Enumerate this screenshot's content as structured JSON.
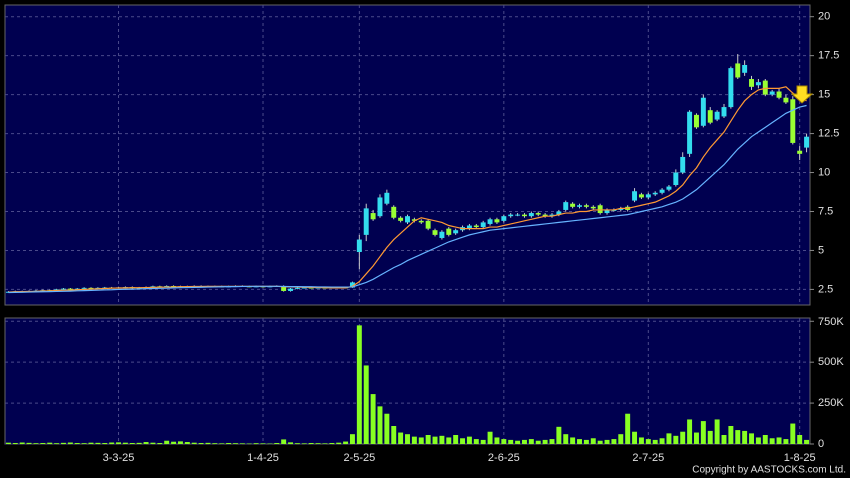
{
  "chart_data": {
    "type": "candlestick",
    "categories": [
      null,
      null,
      null,
      null,
      null,
      null,
      null,
      null,
      null,
      null,
      null,
      null,
      null,
      null,
      null,
      null,
      "3-3-25",
      null,
      null,
      null,
      null,
      null,
      null,
      null,
      null,
      null,
      null,
      null,
      null,
      null,
      null,
      null,
      null,
      null,
      null,
      null,
      null,
      "1-4-25",
      null,
      null,
      null,
      null,
      null,
      null,
      null,
      null,
      null,
      null,
      null,
      null,
      null,
      "2-5-25",
      null,
      null,
      null,
      null,
      null,
      null,
      null,
      null,
      null,
      null,
      null,
      null,
      null,
      null,
      null,
      null,
      null,
      null,
      null,
      null,
      "2-6-25",
      null,
      null,
      null,
      null,
      null,
      null,
      null,
      null,
      null,
      null,
      null,
      null,
      null,
      null,
      null,
      null,
      null,
      null,
      null,
      null,
      "2-7-25",
      null,
      null,
      null,
      null,
      null,
      null,
      null,
      null,
      null,
      null,
      null,
      null,
      null,
      null,
      null,
      null,
      null,
      null,
      null,
      null,
      null,
      "1-8-25",
      null
    ],
    "open": [
      2.33,
      2.35,
      2.38,
      2.36,
      2.4,
      2.42,
      2.45,
      2.43,
      2.5,
      2.55,
      2.52,
      2.55,
      2.6,
      2.58,
      2.6,
      2.62,
      2.6,
      2.63,
      2.65,
      2.6,
      2.62,
      2.65,
      2.7,
      2.68,
      2.72,
      2.7,
      2.68,
      2.7,
      2.72,
      2.7,
      2.68,
      2.7,
      2.68,
      2.7,
      2.72,
      2.7,
      2.68,
      2.7,
      2.68,
      2.7,
      2.72,
      2.4,
      2.55,
      2.6,
      2.62,
      2.6,
      2.62,
      2.6,
      2.62,
      2.64,
      2.62,
      4.9,
      6.0,
      7.4,
      7.2,
      8.0,
      7.8,
      7.1,
      6.8,
      7.0,
      6.9,
      6.9,
      6.3,
      5.8,
      6.4,
      6.1,
      6.3,
      6.4,
      6.6,
      6.5,
      6.7,
      7.0,
      6.9,
      7.2,
      7.3,
      7.3,
      7.2,
      7.4,
      7.3,
      7.2,
      7.3,
      7.6,
      8.0,
      7.8,
      7.9,
      7.8,
      7.9,
      7.4,
      7.6,
      7.6,
      7.8,
      8.2,
      8.6,
      8.4,
      8.6,
      8.7,
      8.9,
      9.2,
      10.0,
      11.2,
      13.7,
      13.0,
      14.0,
      13.4,
      13.6,
      14.2,
      17.0,
      16.4,
      16.0,
      15.6,
      15.9,
      15.0,
      15.2,
      14.8,
      14.7,
      11.4,
      11.6
    ],
    "high": [
      2.39,
      2.42,
      2.42,
      2.44,
      2.46,
      2.49,
      2.49,
      2.54,
      2.59,
      2.59,
      2.59,
      2.64,
      2.64,
      2.64,
      2.66,
      2.66,
      2.67,
      2.69,
      2.69,
      2.66,
      2.69,
      2.74,
      2.74,
      2.76,
      2.76,
      2.74,
      2.74,
      2.76,
      2.76,
      2.74,
      2.74,
      2.74,
      2.74,
      2.76,
      2.76,
      2.74,
      2.74,
      2.74,
      2.74,
      2.76,
      2.76,
      2.59,
      2.64,
      2.66,
      2.66,
      2.66,
      2.66,
      2.66,
      2.68,
      2.68,
      3.0,
      6.0,
      8.0,
      7.6,
      8.6,
      8.9,
      7.9,
      7.2,
      7.3,
      7.1,
      7.0,
      7.0,
      6.4,
      6.3,
      6.5,
      6.4,
      6.6,
      6.7,
      6.7,
      6.9,
      7.1,
      7.1,
      7.3,
      7.4,
      7.4,
      7.4,
      7.5,
      7.5,
      7.4,
      7.4,
      7.6,
      8.2,
      8.1,
      8.0,
      8.0,
      7.9,
      8.0,
      7.7,
      7.7,
      7.8,
      7.9,
      9.0,
      8.7,
      8.7,
      8.8,
      9.0,
      9.2,
      10.2,
      11.3,
      14.0,
      13.8,
      15.0,
      14.2,
      14.0,
      14.4,
      16.8,
      17.6,
      17.2,
      16.2,
      16.0,
      16.0,
      15.3,
      15.4,
      15.0,
      14.9,
      11.7,
      12.5
    ],
    "low": [
      2.29,
      2.31,
      2.32,
      2.32,
      2.36,
      2.38,
      2.39,
      2.39,
      2.46,
      2.48,
      2.48,
      2.51,
      2.54,
      2.54,
      2.56,
      2.56,
      2.56,
      2.59,
      2.56,
      2.56,
      2.58,
      2.61,
      2.64,
      2.64,
      2.66,
      2.64,
      2.64,
      2.66,
      2.66,
      2.64,
      2.64,
      2.64,
      2.64,
      2.66,
      2.66,
      2.64,
      2.64,
      2.64,
      2.64,
      2.66,
      2.36,
      2.36,
      2.51,
      2.56,
      2.56,
      2.56,
      2.56,
      2.56,
      2.58,
      2.56,
      2.6,
      3.8,
      5.6,
      6.9,
      7.1,
      7.9,
      7.0,
      6.8,
      6.7,
      6.8,
      6.7,
      6.3,
      5.9,
      5.7,
      5.9,
      6.0,
      6.2,
      6.3,
      6.4,
      6.4,
      6.6,
      6.7,
      6.8,
      7.1,
      7.2,
      7.1,
      7.1,
      7.2,
      7.1,
      7.1,
      7.2,
      7.5,
      7.7,
      7.7,
      7.7,
      7.6,
      7.3,
      7.3,
      7.5,
      7.5,
      7.5,
      8.1,
      8.3,
      8.3,
      8.5,
      8.6,
      8.8,
      9.1,
      9.9,
      11.0,
      12.8,
      12.9,
      13.1,
      13.3,
      13.5,
      14.1,
      16.0,
      16.2,
      15.3,
      15.4,
      14.9,
      14.9,
      14.7,
      14.4,
      11.8,
      10.8,
      11.3
    ],
    "close": [
      2.35,
      2.38,
      2.36,
      2.4,
      2.42,
      2.45,
      2.43,
      2.5,
      2.55,
      2.52,
      2.55,
      2.6,
      2.58,
      2.6,
      2.62,
      2.6,
      2.63,
      2.65,
      2.6,
      2.62,
      2.65,
      2.7,
      2.68,
      2.72,
      2.7,
      2.68,
      2.7,
      2.72,
      2.7,
      2.68,
      2.7,
      2.68,
      2.7,
      2.72,
      2.7,
      2.68,
      2.7,
      2.68,
      2.7,
      2.72,
      2.4,
      2.55,
      2.6,
      2.62,
      2.6,
      2.62,
      2.6,
      2.62,
      2.64,
      2.6,
      2.95,
      5.7,
      7.7,
      7.0,
      8.4,
      8.7,
      7.1,
      6.9,
      7.2,
      6.9,
      6.8,
      6.4,
      6.0,
      6.2,
      6.0,
      6.3,
      6.5,
      6.6,
      6.5,
      6.8,
      7.0,
      6.8,
      7.2,
      7.3,
      7.3,
      7.2,
      7.4,
      7.3,
      7.2,
      7.3,
      7.5,
      8.1,
      7.8,
      7.9,
      7.8,
      7.7,
      7.4,
      7.6,
      7.6,
      7.7,
      7.6,
      8.8,
      8.4,
      8.6,
      8.7,
      8.9,
      9.1,
      10.0,
      11.0,
      13.9,
      12.9,
      14.8,
      13.2,
      13.9,
      14.2,
      16.7,
      16.1,
      16.9,
      15.5,
      15.8,
      15.0,
      15.2,
      14.8,
      14.5,
      11.9,
      11.2,
      12.3
    ],
    "volume": [
      8000,
      6000,
      9000,
      7000,
      5000,
      6000,
      8000,
      5000,
      7000,
      9000,
      6000,
      5000,
      8000,
      7000,
      6000,
      9000,
      10000,
      8000,
      6000,
      7000,
      12000,
      8000,
      6000,
      20000,
      14000,
      16000,
      12000,
      8000,
      6000,
      7000,
      5000,
      4000,
      6000,
      5000,
      4000,
      3000,
      5000,
      4000,
      3000,
      6000,
      28000,
      10000,
      5000,
      4000,
      6000,
      5000,
      4000,
      6000,
      8000,
      15000,
      60000,
      725000,
      480000,
      305000,
      230000,
      185000,
      110000,
      70000,
      60000,
      45000,
      40000,
      55000,
      45000,
      50000,
      40000,
      55000,
      35000,
      45000,
      30000,
      25000,
      75000,
      40000,
      30000,
      25000,
      20000,
      25000,
      30000,
      20000,
      25000,
      30000,
      105000,
      60000,
      40000,
      30000,
      25000,
      35000,
      20000,
      25000,
      30000,
      60000,
      185000,
      75000,
      40000,
      30000,
      25000,
      35000,
      65000,
      50000,
      75000,
      150000,
      70000,
      140000,
      80000,
      150000,
      55000,
      110000,
      85000,
      80000,
      65000,
      40000,
      55000,
      35000,
      40000,
      30000,
      125000,
      55000,
      25000
    ],
    "moving_averages": [
      {
        "color": "#ff9933",
        "values": [
          2.33,
          2.35,
          2.36,
          2.37,
          2.38,
          2.4,
          2.41,
          2.43,
          2.45,
          2.46,
          2.48,
          2.5,
          2.52,
          2.54,
          2.56,
          2.58,
          2.59,
          2.6,
          2.61,
          2.61,
          2.62,
          2.63,
          2.64,
          2.65,
          2.66,
          2.67,
          2.68,
          2.69,
          2.69,
          2.7,
          2.7,
          2.7,
          2.7,
          2.7,
          2.7,
          2.7,
          2.7,
          2.7,
          2.7,
          2.7,
          2.67,
          2.66,
          2.65,
          2.64,
          2.63,
          2.62,
          2.61,
          2.6,
          2.6,
          2.6,
          2.7,
          3.0,
          3.5,
          4.0,
          4.6,
          5.2,
          5.7,
          6.1,
          6.5,
          6.9,
          7.1,
          7.0,
          6.9,
          6.8,
          6.6,
          6.5,
          6.4,
          6.4,
          6.4,
          6.4,
          6.5,
          6.5,
          6.6,
          6.7,
          6.8,
          6.9,
          7.0,
          7.1,
          7.2,
          7.2,
          7.3,
          7.4,
          7.4,
          7.5,
          7.5,
          7.6,
          7.6,
          7.6,
          7.6,
          7.7,
          7.7,
          7.8,
          7.9,
          8.0,
          8.1,
          8.3,
          8.5,
          8.8,
          9.2,
          9.8,
          10.3,
          11.0,
          11.6,
          12.1,
          12.6,
          13.3,
          14.0,
          14.6,
          15.0,
          15.3,
          15.4,
          15.4,
          15.4,
          15.5,
          15.1,
          14.8,
          14.6
        ]
      },
      {
        "color": "#66b3ff",
        "values": [
          2.3,
          2.31,
          2.32,
          2.33,
          2.34,
          2.35,
          2.36,
          2.37,
          2.38,
          2.39,
          2.41,
          2.42,
          2.44,
          2.45,
          2.47,
          2.48,
          2.5,
          2.51,
          2.52,
          2.53,
          2.55,
          2.56,
          2.57,
          2.58,
          2.6,
          2.61,
          2.62,
          2.63,
          2.64,
          2.65,
          2.66,
          2.67,
          2.68,
          2.68,
          2.69,
          2.69,
          2.7,
          2.7,
          2.7,
          2.7,
          2.69,
          2.68,
          2.68,
          2.67,
          2.67,
          2.66,
          2.66,
          2.65,
          2.65,
          2.65,
          2.66,
          2.8,
          2.95,
          3.15,
          3.4,
          3.65,
          3.9,
          4.1,
          4.35,
          4.55,
          4.75,
          4.95,
          5.15,
          5.35,
          5.55,
          5.7,
          5.85,
          6.0,
          6.1,
          6.2,
          6.3,
          6.35,
          6.4,
          6.45,
          6.5,
          6.55,
          6.6,
          6.65,
          6.7,
          6.75,
          6.8,
          6.85,
          6.9,
          6.95,
          7.0,
          7.05,
          7.1,
          7.15,
          7.2,
          7.25,
          7.3,
          7.4,
          7.5,
          7.6,
          7.7,
          7.8,
          7.95,
          8.1,
          8.3,
          8.6,
          8.9,
          9.3,
          9.7,
          10.1,
          10.5,
          11.0,
          11.5,
          11.9,
          12.3,
          12.6,
          12.9,
          13.2,
          13.5,
          13.8,
          14.0,
          14.2,
          14.3
        ]
      }
    ],
    "up_color": "#33ddee",
    "down_color": "#99ff33",
    "volume_color": "#88ff22",
    "ylim": [
      1.5,
      20.75
    ],
    "yticks": [
      2.5,
      5,
      7.5,
      10,
      12.5,
      15,
      17.5,
      20
    ],
    "volume_ylim": [
      0,
      770000
    ],
    "volume_ticks": [
      0,
      {
        "value": 250000,
        "label": "250K"
      },
      {
        "value": 500000,
        "label": "500K"
      },
      {
        "value": 750000,
        "label": "750K"
      }
    ],
    "grid": true,
    "copyright": "Copyright by AASTOCKS.com Ltd."
  }
}
